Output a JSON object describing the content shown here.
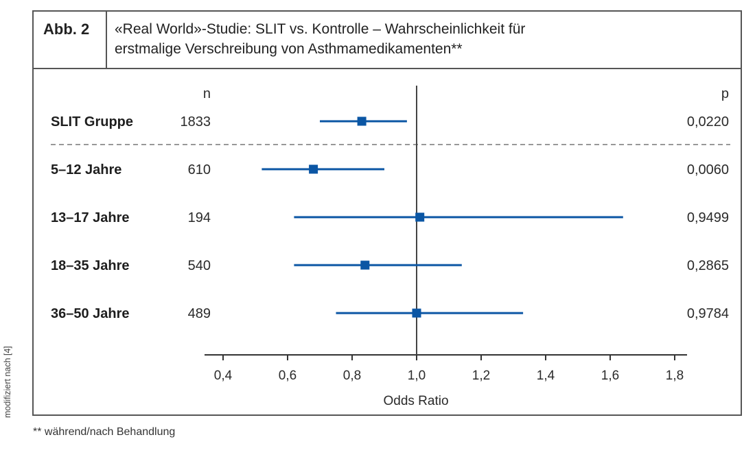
{
  "figure": {
    "label": "Abb. 2",
    "title_line1": "«Real World»-Studie: SLIT vs. Kontrolle – Wahrscheinlichkeit für",
    "title_line2": "erstmalige Verschreibung von Asthmamedikamenten**",
    "source_note": "modifiziert nach [4]",
    "footnote": "** während/nach Behandlung"
  },
  "chart_data": {
    "type": "forest",
    "xlabel": "Odds Ratio",
    "xlim": [
      0.35,
      1.85
    ],
    "xticks": [
      0.4,
      0.6,
      0.8,
      1.0,
      1.2,
      1.4,
      1.6,
      1.8
    ],
    "xtick_labels": [
      "0,4",
      "0,6",
      "0,8",
      "1,0",
      "1,2",
      "1,4",
      "1,6",
      "1,8"
    ],
    "reference_line": 1.0,
    "col_n_header": "n",
    "col_p_header": "p",
    "marker_color": "#0b56a4",
    "rows": [
      {
        "label": "SLIT Gruppe",
        "n": "1833",
        "or": 0.83,
        "ci_low": 0.7,
        "ci_high": 0.97,
        "p": "0,0220"
      },
      {
        "label": "5–12 Jahre",
        "n": "610",
        "or": 0.68,
        "ci_low": 0.52,
        "ci_high": 0.9,
        "p": "0,0060"
      },
      {
        "label": "13–17 Jahre",
        "n": "194",
        "or": 1.01,
        "ci_low": 0.62,
        "ci_high": 1.64,
        "p": "0,9499"
      },
      {
        "label": "18–35 Jahre",
        "n": "540",
        "or": 0.84,
        "ci_low": 0.62,
        "ci_high": 1.14,
        "p": "0,2865"
      },
      {
        "label": "36–50 Jahre",
        "n": "489",
        "or": 1.0,
        "ci_low": 0.75,
        "ci_high": 1.33,
        "p": "0,9784"
      }
    ]
  }
}
